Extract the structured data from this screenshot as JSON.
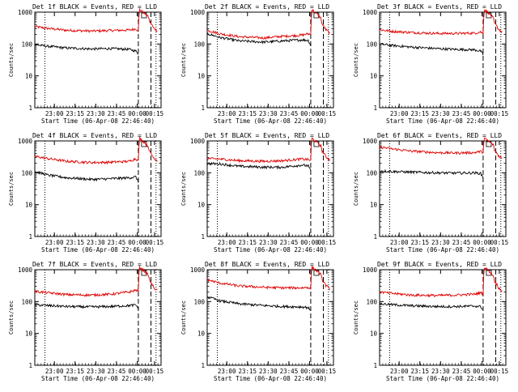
{
  "colors": {
    "events": "#000000",
    "lld": "#e00000",
    "axes": "#000000",
    "background": "#ffffff"
  },
  "x_tick_labels": [
    "23:00",
    "23:15",
    "23:30",
    "23:45",
    "00:00",
    "00:15"
  ],
  "y_tick_labels": [
    "1",
    "10",
    "100",
    "1000"
  ],
  "chart_data": [
    {
      "type": "line",
      "title": "Det 1f BLACK = Events, RED = LLD",
      "xlabel": "Start Time (06-Apr-08 22:46:40)",
      "ylabel": "Counts/sec",
      "y_scale": "log",
      "ylim": [
        1,
        1000
      ],
      "series": [
        {
          "color": "red",
          "points": [
            [
              0,
              350
            ],
            [
              10,
              310
            ],
            [
              25,
              270
            ],
            [
              45,
              255
            ],
            [
              60,
              265
            ],
            [
              75,
              275
            ],
            [
              80,
              300
            ],
            [
              82,
              260
            ],
            [
              83,
              1200
            ],
            [
              90,
              700
            ],
            [
              91,
              500
            ],
            [
              94,
              320
            ],
            [
              97,
              260
            ]
          ]
        },
        {
          "color": "black",
          "points": [
            [
              0,
              95
            ],
            [
              10,
              85
            ],
            [
              25,
              75
            ],
            [
              45,
              70
            ],
            [
              60,
              72
            ],
            [
              75,
              68
            ],
            [
              80,
              60
            ],
            [
              82,
              50
            ]
          ]
        }
      ],
      "markers": [
        {
          "x": 8,
          "style": "dotted"
        },
        {
          "x": 82,
          "style": "dashed"
        },
        {
          "x": 92,
          "style": "dashed"
        },
        {
          "x": 96,
          "style": "dotted"
        }
      ]
    },
    {
      "type": "line",
      "title": "Det 2f BLACK = Events, RED = LLD",
      "xlabel": "Start Time (06-Apr-08 22:46:40)",
      "ylabel": "Counts/sec",
      "y_scale": "log",
      "ylim": [
        1,
        1000
      ],
      "series": [
        {
          "color": "red",
          "points": [
            [
              0,
              270
            ],
            [
              10,
              210
            ],
            [
              25,
              170
            ],
            [
              45,
              155
            ],
            [
              60,
              175
            ],
            [
              75,
              190
            ],
            [
              80,
              210
            ],
            [
              82,
              200
            ],
            [
              83,
              1200
            ],
            [
              90,
              650
            ],
            [
              91,
              420
            ],
            [
              94,
              280
            ],
            [
              97,
              220
            ]
          ]
        },
        {
          "color": "black",
          "points": [
            [
              0,
              210
            ],
            [
              10,
              160
            ],
            [
              25,
              125
            ],
            [
              45,
              115
            ],
            [
              60,
              125
            ],
            [
              75,
              135
            ],
            [
              80,
              130
            ],
            [
              82,
              90
            ]
          ]
        }
      ],
      "markers": [
        {
          "x": 8,
          "style": "dotted"
        },
        {
          "x": 82,
          "style": "dashed"
        },
        {
          "x": 92,
          "style": "dashed"
        },
        {
          "x": 96,
          "style": "dotted"
        }
      ]
    },
    {
      "type": "line",
      "title": "Det 3f BLACK = Events, RED = LLD",
      "xlabel": "Start Time (06-Apr-08 22:46:40)",
      "ylabel": "Counts/sec",
      "y_scale": "log",
      "ylim": [
        1,
        1000
      ],
      "series": [
        {
          "color": "red",
          "points": [
            [
              0,
              280
            ],
            [
              10,
              250
            ],
            [
              25,
              230
            ],
            [
              45,
              215
            ],
            [
              60,
              215
            ],
            [
              75,
              220
            ],
            [
              80,
              240
            ],
            [
              82,
              210
            ],
            [
              83,
              1200
            ],
            [
              90,
              650
            ],
            [
              91,
              450
            ],
            [
              94,
              300
            ],
            [
              97,
              230
            ]
          ]
        },
        {
          "color": "black",
          "points": [
            [
              0,
              100
            ],
            [
              10,
              90
            ],
            [
              25,
              80
            ],
            [
              45,
              72
            ],
            [
              60,
              68
            ],
            [
              75,
              66
            ],
            [
              80,
              60
            ],
            [
              82,
              45
            ]
          ]
        }
      ],
      "markers": [
        {
          "x": 8,
          "style": "dotted"
        },
        {
          "x": 82,
          "style": "dashed"
        },
        {
          "x": 92,
          "style": "dashed"
        },
        {
          "x": 96,
          "style": "dotted"
        }
      ]
    },
    {
      "type": "line",
      "title": "Det 4f BLACK = Events, RED = LLD",
      "xlabel": "Start Time (06-Apr-08 22:46:40)",
      "ylabel": "Counts/sec",
      "y_scale": "log",
      "ylim": [
        1,
        1000
      ],
      "series": [
        {
          "color": "red",
          "points": [
            [
              0,
              330
            ],
            [
              10,
              280
            ],
            [
              25,
              230
            ],
            [
              45,
              210
            ],
            [
              60,
              215
            ],
            [
              75,
              230
            ],
            [
              80,
              280
            ],
            [
              82,
              240
            ],
            [
              83,
              1200
            ],
            [
              90,
              650
            ],
            [
              91,
              450
            ],
            [
              94,
              300
            ],
            [
              97,
              240
            ]
          ]
        },
        {
          "color": "black",
          "points": [
            [
              0,
              110
            ],
            [
              10,
              85
            ],
            [
              25,
              70
            ],
            [
              45,
              62
            ],
            [
              60,
              65
            ],
            [
              75,
              70
            ],
            [
              80,
              75
            ],
            [
              82,
              50
            ]
          ]
        }
      ],
      "markers": [
        {
          "x": 8,
          "style": "dotted"
        },
        {
          "x": 82,
          "style": "dashed"
        },
        {
          "x": 92,
          "style": "dashed"
        },
        {
          "x": 96,
          "style": "dotted"
        }
      ]
    },
    {
      "type": "line",
      "title": "Det 5f BLACK = Events, RED = LLD",
      "xlabel": "Start Time (06-Apr-08 22:46:40)",
      "ylabel": "Counts/sec",
      "y_scale": "log",
      "ylim": [
        1,
        1000
      ],
      "series": [
        {
          "color": "red",
          "points": [
            [
              0,
              280
            ],
            [
              10,
              270
            ],
            [
              25,
              240
            ],
            [
              45,
              230
            ],
            [
              60,
              240
            ],
            [
              75,
              270
            ],
            [
              80,
              260
            ],
            [
              82,
              240
            ],
            [
              83,
              1200
            ],
            [
              90,
              700
            ],
            [
              91,
              480
            ],
            [
              94,
              320
            ],
            [
              97,
              250
            ]
          ]
        },
        {
          "color": "black",
          "points": [
            [
              0,
              195
            ],
            [
              10,
              190
            ],
            [
              25,
              160
            ],
            [
              45,
              150
            ],
            [
              60,
              150
            ],
            [
              75,
              175
            ],
            [
              80,
              165
            ],
            [
              82,
              110
            ]
          ]
        }
      ],
      "markers": [
        {
          "x": 8,
          "style": "dotted"
        },
        {
          "x": 82,
          "style": "dashed"
        },
        {
          "x": 92,
          "style": "dashed"
        },
        {
          "x": 96,
          "style": "dotted"
        }
      ]
    },
    {
      "type": "line",
      "title": "Det 6f BLACK = Events, RED = LLD",
      "xlabel": "Start Time (06-Apr-08 22:46:40)",
      "ylabel": "Counts/sec",
      "y_scale": "log",
      "ylim": [
        1,
        1000
      ],
      "series": [
        {
          "color": "red",
          "points": [
            [
              0,
              650
            ],
            [
              10,
              560
            ],
            [
              25,
              480
            ],
            [
              45,
              430
            ],
            [
              60,
              420
            ],
            [
              75,
              430
            ],
            [
              80,
              470
            ],
            [
              82,
              430
            ],
            [
              83,
              1200
            ],
            [
              90,
              750
            ],
            [
              91,
              520
            ],
            [
              94,
              350
            ],
            [
              97,
              280
            ]
          ]
        },
        {
          "color": "black",
          "points": [
            [
              0,
              115
            ],
            [
              10,
              110
            ],
            [
              25,
              105
            ],
            [
              45,
              100
            ],
            [
              60,
              98
            ],
            [
              75,
              100
            ],
            [
              80,
              95
            ],
            [
              82,
              70
            ]
          ]
        }
      ],
      "markers": [
        {
          "x": 8,
          "style": "dotted"
        },
        {
          "x": 82,
          "style": "dashed"
        },
        {
          "x": 92,
          "style": "dashed"
        },
        {
          "x": 96,
          "style": "dotted"
        }
      ]
    },
    {
      "type": "line",
      "title": "Det 7f BLACK = Events, RED = LLD",
      "xlabel": "Start Time (06-Apr-08 22:46:40)",
      "ylabel": "Counts/sec",
      "y_scale": "log",
      "ylim": [
        1,
        1000
      ],
      "series": [
        {
          "color": "red",
          "points": [
            [
              0,
              210
            ],
            [
              10,
              190
            ],
            [
              25,
              165
            ],
            [
              45,
              160
            ],
            [
              60,
              170
            ],
            [
              75,
              200
            ],
            [
              80,
              230
            ],
            [
              82,
              210
            ],
            [
              83,
              1200
            ],
            [
              90,
              650
            ],
            [
              91,
              450
            ],
            [
              94,
              280
            ],
            [
              97,
              220
            ]
          ]
        },
        {
          "color": "black",
          "points": [
            [
              0,
              80
            ],
            [
              10,
              75
            ],
            [
              25,
              70
            ],
            [
              45,
              68
            ],
            [
              60,
              70
            ],
            [
              75,
              75
            ],
            [
              80,
              78
            ],
            [
              82,
              60
            ]
          ]
        }
      ],
      "markers": [
        {
          "x": 8,
          "style": "dotted"
        },
        {
          "x": 82,
          "style": "dashed"
        },
        {
          "x": 92,
          "style": "dashed"
        },
        {
          "x": 96,
          "style": "dotted"
        }
      ]
    },
    {
      "type": "line",
      "title": "Det 8f BLACK = Events, RED = LLD",
      "xlabel": "Start Time (06-Apr-08 22:46:40)",
      "ylabel": "Counts/sec",
      "y_scale": "log",
      "ylim": [
        1,
        1000
      ],
      "series": [
        {
          "color": "red",
          "points": [
            [
              0,
              480
            ],
            [
              10,
              380
            ],
            [
              25,
              310
            ],
            [
              45,
              280
            ],
            [
              60,
              270
            ],
            [
              75,
              270
            ],
            [
              80,
              280
            ],
            [
              82,
              250
            ],
            [
              83,
              1200
            ],
            [
              90,
              700
            ],
            [
              91,
              480
            ],
            [
              94,
              320
            ],
            [
              97,
              250
            ]
          ]
        },
        {
          "color": "black",
          "points": [
            [
              0,
              140
            ],
            [
              10,
              105
            ],
            [
              25,
              85
            ],
            [
              45,
              75
            ],
            [
              60,
              70
            ],
            [
              75,
              68
            ],
            [
              80,
              65
            ],
            [
              82,
              50
            ]
          ]
        }
      ],
      "markers": [
        {
          "x": 8,
          "style": "dotted"
        },
        {
          "x": 82,
          "style": "dashed"
        },
        {
          "x": 92,
          "style": "dashed"
        },
        {
          "x": 96,
          "style": "dotted"
        }
      ]
    },
    {
      "type": "line",
      "title": "Det 9f BLACK = Events, RED = LLD",
      "xlabel": "Start Time (06-Apr-08 22:46:40)",
      "ylabel": "Counts/sec",
      "y_scale": "log",
      "ylim": [
        1,
        1000
      ],
      "series": [
        {
          "color": "red",
          "points": [
            [
              0,
              200
            ],
            [
              10,
              180
            ],
            [
              25,
              160
            ],
            [
              45,
              155
            ],
            [
              60,
              160
            ],
            [
              75,
              170
            ],
            [
              80,
              190
            ],
            [
              82,
              175
            ],
            [
              83,
              1200
            ],
            [
              90,
              650
            ],
            [
              91,
              450
            ],
            [
              94,
              280
            ],
            [
              97,
              210
            ]
          ]
        },
        {
          "color": "black",
          "points": [
            [
              0,
              85
            ],
            [
              10,
              80
            ],
            [
              25,
              74
            ],
            [
              45,
              70
            ],
            [
              60,
              70
            ],
            [
              75,
              72
            ],
            [
              80,
              70
            ],
            [
              82,
              55
            ]
          ]
        }
      ],
      "markers": [
        {
          "x": 8,
          "style": "dotted"
        },
        {
          "x": 82,
          "style": "dashed"
        },
        {
          "x": 92,
          "style": "dashed"
        },
        {
          "x": 96,
          "style": "dotted"
        }
      ]
    }
  ]
}
